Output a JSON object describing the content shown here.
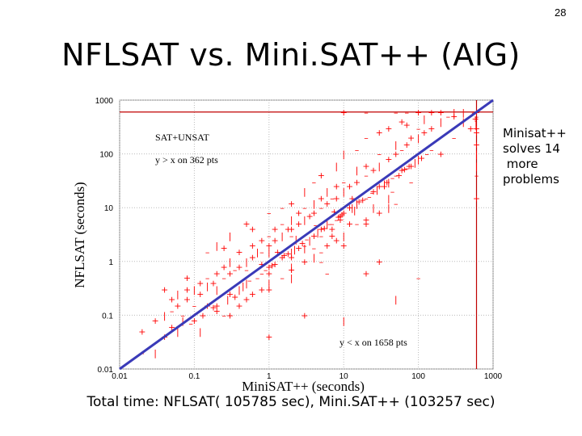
{
  "slide": {
    "page_number": "28",
    "title": "NFLSAT vs. Mini.SAT++ (AIG)",
    "callout_lines": [
      "Minisat++",
      "solves 14",
      " more",
      "problems"
    ],
    "total_time": "Total time: NFLSAT( 105785 sec), Mini.SAT++ (103257 sec)"
  },
  "colors": {
    "points": "#ff0000",
    "diagonal": "#3a3ab8",
    "limit_lines": "#c00000",
    "grid": "#bbbbbb"
  },
  "chart_data": {
    "type": "scatter",
    "xscale": "log",
    "yscale": "log",
    "xlabel": "MiniSAT++ (seconds)",
    "ylabel": "NFLSAT (seconds)",
    "xlim": [
      0.01,
      1000
    ],
    "ylim": [
      0.01,
      1000
    ],
    "xticks": [
      "0.01",
      "0.1",
      "1",
      "10",
      "100",
      "1000"
    ],
    "yticks": [
      "0.01",
      "0.1",
      "1",
      "10",
      "100",
      "1000"
    ],
    "grid": true,
    "diagonal": [
      [
        0.01,
        0.01
      ],
      [
        1000,
        1000
      ]
    ],
    "limit_lines": {
      "x": 600,
      "y": 600
    },
    "annotations": {
      "upper": [
        "SAT+UNSAT",
        "y > x on 362 pts"
      ],
      "lower": [
        "y < x on 1658 pts"
      ]
    },
    "markers": {
      "plus": "+",
      "dash": "–",
      "bar": "|"
    },
    "series": [
      {
        "points": [
          [
            0.02,
            0.05
          ],
          [
            0.03,
            0.08
          ],
          [
            0.04,
            0.1
          ],
          [
            0.05,
            0.12
          ],
          [
            0.05,
            0.2
          ],
          [
            0.06,
            0.15
          ],
          [
            0.06,
            0.25
          ],
          [
            0.07,
            0.1
          ],
          [
            0.08,
            0.2
          ],
          [
            0.08,
            0.3
          ],
          [
            0.1,
            0.3
          ],
          [
            0.1,
            0.15
          ],
          [
            0.12,
            0.4
          ],
          [
            0.12,
            0.25
          ],
          [
            0.15,
            0.35
          ],
          [
            0.15,
            0.5
          ],
          [
            0.18,
            0.4
          ],
          [
            0.2,
            0.6
          ],
          [
            0.2,
            0.3
          ],
          [
            0.25,
            0.5
          ],
          [
            0.25,
            0.8
          ],
          [
            0.3,
            0.6
          ],
          [
            0.3,
            1
          ],
          [
            0.35,
            0.7
          ],
          [
            0.4,
            0.8
          ],
          [
            0.4,
            1.5
          ],
          [
            0.5,
            1
          ],
          [
            0.5,
            0.7
          ],
          [
            0.6,
            1.2
          ],
          [
            0.6,
            2
          ],
          [
            0.7,
            1.5
          ],
          [
            0.8,
            1.5
          ],
          [
            0.8,
            2.5
          ],
          [
            1,
            2
          ],
          [
            1,
            1.5
          ],
          [
            1,
            3
          ],
          [
            1.2,
            2.5
          ],
          [
            1.2,
            4
          ],
          [
            1.5,
            3
          ],
          [
            1.5,
            5
          ],
          [
            1.8,
            4
          ],
          [
            2,
            4
          ],
          [
            2,
            6
          ],
          [
            2,
            3
          ],
          [
            2.5,
            5
          ],
          [
            2.5,
            8
          ],
          [
            3,
            6
          ],
          [
            3,
            10
          ],
          [
            3.5,
            7
          ],
          [
            4,
            8
          ],
          [
            4,
            12
          ],
          [
            5,
            10
          ],
          [
            5,
            15
          ],
          [
            6,
            12
          ],
          [
            6,
            20
          ],
          [
            7,
            15
          ],
          [
            8,
            15
          ],
          [
            8,
            25
          ],
          [
            10,
            20
          ],
          [
            10,
            30
          ],
          [
            12,
            25
          ],
          [
            15,
            30
          ],
          [
            15,
            50
          ],
          [
            20,
            40
          ],
          [
            20,
            60
          ],
          [
            25,
            50
          ],
          [
            30,
            60
          ],
          [
            30,
            100
          ],
          [
            40,
            80
          ],
          [
            50,
            100
          ],
          [
            50,
            150
          ],
          [
            60,
            120
          ],
          [
            70,
            150
          ],
          [
            80,
            200
          ],
          [
            100,
            200
          ],
          [
            100,
            300
          ],
          [
            120,
            250
          ],
          [
            150,
            300
          ],
          [
            200,
            400
          ],
          [
            250,
            500
          ],
          [
            300,
            500
          ],
          [
            0.5,
            5
          ],
          [
            0.3,
            3
          ],
          [
            1,
            8
          ],
          [
            2,
            12
          ],
          [
            5,
            40
          ],
          [
            0.2,
            2
          ],
          [
            0.15,
            1.5
          ],
          [
            0.08,
            0.5
          ],
          [
            0.04,
            0.3
          ],
          [
            10,
            100
          ],
          [
            20,
            200
          ],
          [
            40,
            300
          ],
          [
            60,
            400
          ],
          [
            3,
            20
          ],
          [
            1.5,
            10
          ],
          [
            0.6,
            4
          ],
          [
            0.25,
            1.8
          ],
          [
            8,
            60
          ],
          [
            15,
            120
          ],
          [
            30,
            250
          ],
          [
            70,
            350
          ],
          [
            120,
            450
          ],
          [
            4,
            30
          ],
          [
            0.15,
            0.15
          ],
          [
            0.3,
            0.25
          ],
          [
            0.5,
            0.4
          ],
          [
            0.8,
            0.6
          ],
          [
            1,
            0.8
          ],
          [
            1.5,
            1.2
          ],
          [
            2,
            1.5
          ],
          [
            3,
            2
          ],
          [
            4,
            3
          ],
          [
            5,
            4
          ],
          [
            6,
            5
          ],
          [
            8,
            6
          ],
          [
            10,
            8
          ],
          [
            12,
            10
          ],
          [
            15,
            12
          ],
          [
            20,
            15
          ],
          [
            25,
            20
          ],
          [
            30,
            25
          ],
          [
            40,
            30
          ],
          [
            50,
            40
          ],
          [
            60,
            50
          ],
          [
            80,
            60
          ],
          [
            100,
            80
          ],
          [
            150,
            120
          ],
          [
            0.5,
            0.2
          ],
          [
            0.8,
            0.3
          ],
          [
            1,
            0.4
          ],
          [
            1.5,
            0.5
          ],
          [
            2,
            0.7
          ],
          [
            3,
            1
          ],
          [
            4,
            1.2
          ],
          [
            5,
            1.5
          ],
          [
            6,
            2
          ],
          [
            8,
            2.5
          ],
          [
            10,
            3
          ],
          [
            15,
            5
          ],
          [
            20,
            6
          ],
          [
            30,
            8
          ],
          [
            40,
            10
          ],
          [
            50,
            12
          ],
          [
            0.1,
            0.08
          ],
          [
            0.2,
            0.15
          ],
          [
            0.4,
            0.3
          ],
          [
            0.7,
            0.5
          ],
          [
            1.2,
            0.9
          ],
          [
            2.5,
            1.8
          ],
          [
            3.5,
            2.5
          ],
          [
            7,
            5
          ],
          [
            9,
            7
          ],
          [
            18,
            14
          ],
          [
            35,
            28
          ],
          [
            70,
            55
          ],
          [
            0.3,
            0.1
          ],
          [
            0.6,
            0.25
          ],
          [
            2,
            0.8
          ],
          [
            4,
            1.8
          ],
          [
            7,
            3
          ],
          [
            12,
            5
          ],
          [
            25,
            10
          ],
          [
            45,
            20
          ],
          [
            1,
            0.6
          ],
          [
            2,
            1.2
          ],
          [
            3,
            1.8
          ],
          [
            5,
            3
          ],
          [
            7,
            4
          ],
          [
            9,
            6
          ],
          [
            14,
            9
          ],
          [
            22,
            16
          ],
          [
            35,
            25
          ],
          [
            55,
            40
          ],
          [
            90,
            70
          ],
          [
            130,
            100
          ],
          [
            0.2,
            0.12
          ],
          [
            0.35,
            0.22
          ],
          [
            0.45,
            0.35
          ],
          [
            0.9,
            0.7
          ],
          [
            1.8,
            1.4
          ],
          [
            2.8,
            2.2
          ],
          [
            4.5,
            3.5
          ],
          [
            6.5,
            5
          ],
          [
            9.5,
            7.5
          ],
          [
            16,
            13
          ],
          [
            28,
            22
          ],
          [
            45,
            36
          ],
          [
            75,
            60
          ],
          [
            110,
            85
          ],
          [
            0.06,
            0.05
          ],
          [
            0.09,
            0.07
          ],
          [
            0.13,
            0.1
          ],
          [
            0.18,
            0.14
          ],
          [
            0.28,
            0.2
          ],
          [
            0.55,
            0.45
          ],
          [
            1.1,
            0.85
          ],
          [
            1.6,
            1.3
          ],
          [
            2.2,
            1.7
          ],
          [
            3.2,
            2.6
          ],
          [
            5.5,
            4.2
          ],
          [
            8.5,
            6.8
          ],
          [
            13,
            10
          ],
          [
            24,
            19
          ],
          [
            38,
            30
          ],
          [
            65,
            52
          ],
          [
            0.12,
            0.05
          ],
          [
            0.25,
            0.1
          ],
          [
            0.4,
            0.15
          ],
          [
            1,
            0.3
          ],
          [
            2,
            0.5
          ],
          [
            5,
            1
          ],
          [
            10,
            2
          ],
          [
            20,
            5
          ],
          [
            40,
            15
          ],
          [
            80,
            30
          ],
          [
            1,
            0.04
          ],
          [
            3,
            0.1
          ],
          [
            10,
            0.08
          ],
          [
            6,
            0.6
          ],
          [
            30,
            1
          ],
          [
            20,
            0.6
          ],
          [
            50,
            0.2
          ],
          [
            100,
            0.5
          ],
          [
            0.8,
            0.9
          ],
          [
            1.3,
            1.5
          ],
          [
            2.3,
            2.6
          ],
          [
            4.2,
            4.8
          ],
          [
            7.5,
            8.5
          ],
          [
            13,
            15
          ],
          [
            0.03,
            0.02
          ],
          [
            0.02,
            0.02
          ],
          [
            0.04,
            0.04
          ],
          [
            0.05,
            0.06
          ],
          [
            0.07,
            0.08
          ],
          [
            300,
            200
          ],
          [
            500,
            300
          ],
          [
            200,
            100
          ],
          [
            400,
            400
          ],
          [
            550,
            600
          ],
          [
            600,
            600
          ],
          [
            600,
            300
          ],
          [
            600,
            100
          ],
          [
            600,
            40
          ],
          [
            600,
            15
          ],
          [
            600,
            150
          ],
          [
            600,
            60
          ],
          [
            600,
            500
          ],
          [
            600,
            250
          ],
          [
            580,
            450
          ],
          [
            590,
            350
          ],
          [
            50,
            600
          ],
          [
            100,
            600
          ],
          [
            200,
            600
          ],
          [
            300,
            600
          ],
          [
            20,
            600
          ],
          [
            10,
            600
          ],
          [
            150,
            600
          ],
          [
            400,
            600
          ],
          [
            70,
            600
          ]
        ]
      }
    ]
  }
}
